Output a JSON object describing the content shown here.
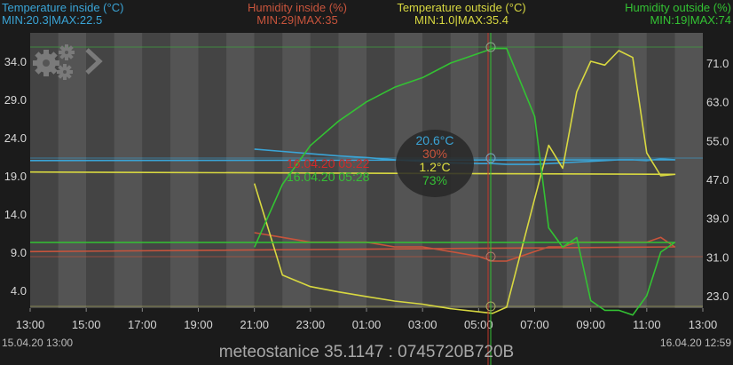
{
  "legend": {
    "temp_inside": {
      "title": "Temperature inside (°C)",
      "minmax": "MIN:20.3|MAX:22.5",
      "color": "#3aa4d6"
    },
    "humidity_inside": {
      "title": "Humidity inside (%)",
      "minmax": "MIN:29|MAX:35",
      "color": "#c8543c"
    },
    "temp_outside": {
      "title": "Temperature outside (°C)",
      "minmax": "MIN:1.0|MAX:35.4",
      "color": "#d8d840"
    },
    "humidity_outside": {
      "title": "Humidity outside (%)",
      "minmax": "MIN:19|MAX:74",
      "color": "#33c233"
    }
  },
  "cursor": {
    "red_time": "16.04.20   05:22",
    "green_time": "16.04.20   05:28",
    "values": {
      "temp_inside": "20.6°C",
      "humidity_inside": "30%",
      "temp_outside": "1.2°C",
      "humidity_outside": "73%"
    }
  },
  "dates": {
    "start": "15.04.20  13:00",
    "end": "16.04.20  12:59"
  },
  "footer": "meteostanice 35.1147 : 0745720B720B",
  "icons": {
    "settings": "gears-icon",
    "next": "chevron-right-icon"
  },
  "chart_data": {
    "type": "line",
    "title": "",
    "x_ticks": [
      "13:00",
      "15:00",
      "17:00",
      "19:00",
      "21:00",
      "23:00",
      "01:00",
      "03:00",
      "05:00",
      "07:00",
      "09:00",
      "11:00",
      "13:00"
    ],
    "y_left": {
      "label": "°C",
      "ticks": [
        34.0,
        29.0,
        24.0,
        19.0,
        14.0,
        9.0,
        4.0
      ],
      "range": [
        1.0,
        35.4
      ]
    },
    "y_right": {
      "label": "%",
      "ticks": [
        71.0,
        63.0,
        55.0,
        47.0,
        39.0,
        31.0,
        23.0
      ],
      "range": [
        19,
        74
      ]
    },
    "grid": "alternating vertical bands (hourly)",
    "x": [
      "21:00",
      "22:00",
      "23:00",
      "00:00",
      "01:00",
      "02:00",
      "03:00",
      "04:00",
      "05:00",
      "05:30",
      "06:00",
      "07:00",
      "07:30",
      "08:00",
      "08:30",
      "09:00",
      "09:30",
      "10:00",
      "10:30",
      "11:00",
      "11:30",
      "12:00",
      "13:00"
    ],
    "series": [
      {
        "name": "Temperature inside (°C)",
        "axis": "left",
        "color": "#3aa4d6",
        "values": [
          22.5,
          22.2,
          21.9,
          21.6,
          21.4,
          21.1,
          20.9,
          20.7,
          20.6,
          20.6,
          20.5,
          20.5,
          20.6,
          20.7,
          20.8,
          20.9,
          21.0,
          21.1,
          21.1,
          21.0,
          21.2,
          21.1,
          21.0
        ]
      },
      {
        "name": "Humidity inside (%)",
        "axis": "left2",
        "color": "#c8543c",
        "values": [
          35,
          34,
          33,
          33,
          33,
          32,
          32,
          31,
          30,
          29,
          29,
          31,
          32,
          32,
          33,
          33,
          33,
          33,
          33,
          33,
          34,
          32,
          31
        ]
      },
      {
        "name": "Temperature outside (°C)",
        "axis": "left",
        "color": "#d8d840",
        "values": [
          18.0,
          6.0,
          4.5,
          3.8,
          3.2,
          2.6,
          2.2,
          1.6,
          1.2,
          1.0,
          1.8,
          16.0,
          23.0,
          20.0,
          30.0,
          34.0,
          33.5,
          35.4,
          34.5,
          22.0,
          19.0,
          19.2,
          19.5
        ]
      },
      {
        "name": "Humidity outside (%)",
        "axis": "right",
        "color": "#33c233",
        "values": [
          33,
          46,
          54,
          59,
          63,
          66,
          68,
          71,
          73,
          74,
          74,
          60,
          37,
          33,
          35,
          22,
          20,
          20,
          19,
          23,
          32,
          34,
          34
        ]
      }
    ],
    "cursor_x": "05:25"
  }
}
